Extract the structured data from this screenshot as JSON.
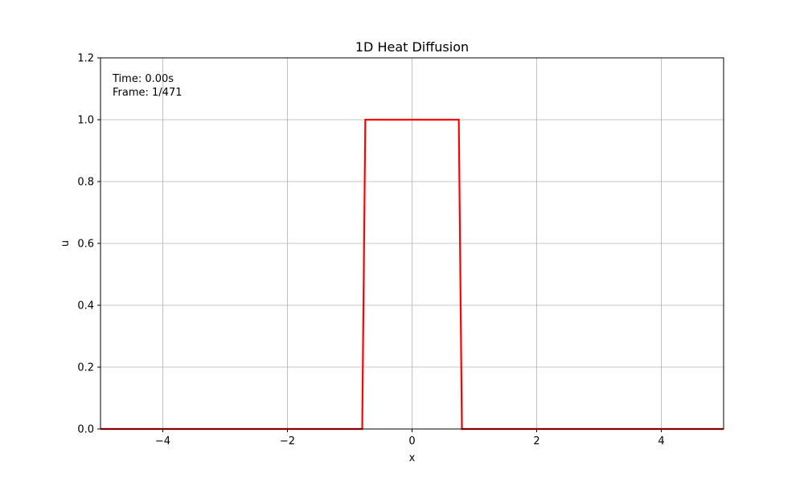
{
  "chart_data": {
    "type": "line",
    "title": "1D Heat Diffusion",
    "xlabel": "x",
    "ylabel": "u",
    "xlim": [
      -5,
      5
    ],
    "ylim": [
      0,
      1.2
    ],
    "grid": true,
    "x_ticks": [
      -4,
      -2,
      0,
      2,
      4
    ],
    "x_tick_labels": [
      "−4",
      "−2",
      "0",
      "2",
      "4"
    ],
    "y_ticks": [
      0,
      0.2,
      0.4,
      0.6,
      0.8,
      1.0,
      1.2
    ],
    "y_tick_labels": [
      "0.0",
      "0.2",
      "0.4",
      "0.6",
      "0.8",
      "1.0",
      "1.2"
    ],
    "annotations": {
      "time": "Time: 0.00s",
      "frame": "Frame: 1/471"
    },
    "colors": {
      "line": "#ff0000",
      "grid": "#b0b0b0",
      "axes": "#000000"
    },
    "series": [
      {
        "x": [
          -5,
          -0.8,
          -0.75,
          0.75,
          0.8,
          5
        ],
        "y": [
          0,
          0,
          1,
          1,
          0,
          0
        ]
      }
    ]
  }
}
